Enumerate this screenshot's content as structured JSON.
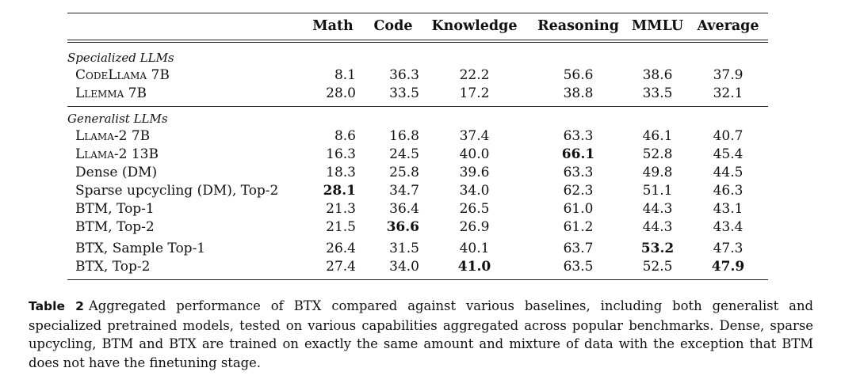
{
  "table": {
    "columns": [
      "Math",
      "Code",
      "Knowledge",
      "Reasoning",
      "MMLU",
      "Average"
    ],
    "groups": [
      {
        "label": "Specialized LLMs",
        "rows": [
          {
            "name": "CodeLlama 7B",
            "smallcaps": true,
            "values": [
              "8.1",
              "36.3",
              "22.2",
              "56.6",
              "38.6",
              "37.9"
            ],
            "bold": []
          },
          {
            "name": "Llemma 7B",
            "smallcaps": true,
            "values": [
              "28.0",
              "33.5",
              "17.2",
              "38.8",
              "33.5",
              "32.1"
            ],
            "bold": []
          }
        ]
      },
      {
        "label": "Generalist LLMs",
        "rows": [
          {
            "name": "Llama-2 7B",
            "smallcaps": true,
            "values": [
              "8.6",
              "16.8",
              "37.4",
              "63.3",
              "46.1",
              "40.7"
            ],
            "bold": []
          },
          {
            "name": "Llama-2 13B",
            "smallcaps": true,
            "values": [
              "16.3",
              "24.5",
              "40.0",
              "66.1",
              "52.8",
              "45.4"
            ],
            "bold": [
              3
            ]
          },
          {
            "name": "Dense (DM)",
            "smallcaps": false,
            "values": [
              "18.3",
              "25.8",
              "39.6",
              "63.3",
              "49.8",
              "44.5"
            ],
            "bold": []
          },
          {
            "name": "Sparse upcycling (DM), Top-2",
            "smallcaps": false,
            "values": [
              "28.1",
              "34.7",
              "34.0",
              "62.3",
              "51.1",
              "46.3"
            ],
            "bold": [
              0
            ]
          },
          {
            "name": "BTM, Top-1",
            "smallcaps": false,
            "values": [
              "21.3",
              "36.4",
              "26.5",
              "61.0",
              "44.3",
              "43.1"
            ],
            "bold": []
          },
          {
            "name": "BTM, Top-2",
            "smallcaps": false,
            "values": [
              "21.5",
              "36.6",
              "26.9",
              "61.2",
              "44.3",
              "43.4"
            ],
            "bold": [
              1
            ]
          },
          {
            "name": "BTX, Sample Top-1",
            "smallcaps": false,
            "values": [
              "26.4",
              "31.5",
              "40.1",
              "63.7",
              "53.2",
              "47.3"
            ],
            "bold": [
              4
            ],
            "gap_before": true
          },
          {
            "name": "BTX, Top-2",
            "smallcaps": false,
            "values": [
              "27.4",
              "34.0",
              "41.0",
              "63.5",
              "52.5",
              "47.9"
            ],
            "bold": [
              2,
              5
            ]
          }
        ]
      }
    ]
  },
  "caption": {
    "label": "Table 2",
    "text": "Aggregated performance of BTX compared against various baselines, including both generalist and specialized pretrained models, tested on various capabilities aggregated across popular benchmarks. Dense, sparse upcycling, BTM and BTX are trained on exactly the same amount and mixture of data with the exception that BTM does not have the finetuning stage."
  }
}
